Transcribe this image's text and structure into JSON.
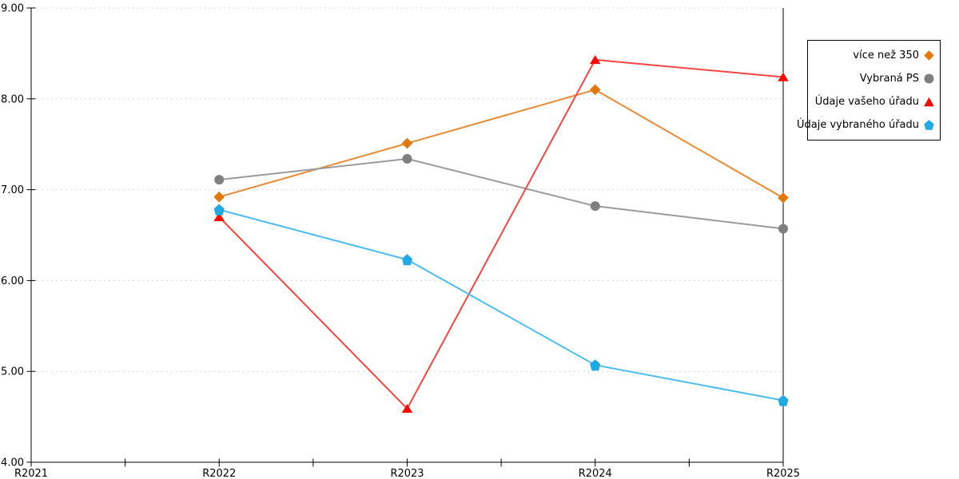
{
  "chart_data": {
    "type": "line",
    "title": "",
    "xlabel": "",
    "ylabel": "",
    "categories": [
      "R2021",
      "R2022",
      "R2023",
      "R2024",
      "R2025"
    ],
    "y_axis": {
      "min": 4,
      "max": 9,
      "tick_step": 1,
      "tick_labels": [
        "4.00",
        "5.00",
        "6.00",
        "7.00",
        "8.00",
        "9.00"
      ]
    },
    "grid": {
      "horizontal": "dotted",
      "color": "#c8c8c8"
    },
    "axis_color": "#000000",
    "legend_position": "right",
    "series": [
      {
        "name": "více než 350",
        "marker": "diamond",
        "color": "#e2790f",
        "line_color": "#e98a33",
        "values": [
          null,
          6.92,
          7.51,
          8.1,
          6.91
        ]
      },
      {
        "name": "Vybraná PS",
        "marker": "circle",
        "color": "#7f7f7f",
        "line_color": "#9b9b9b",
        "values": [
          null,
          7.11,
          7.34,
          6.82,
          6.57
        ]
      },
      {
        "name": "Údaje vašeho úřadu",
        "marker": "triangle-up",
        "color": "#f30d07",
        "line_color": "#f64540",
        "values": [
          null,
          6.7,
          4.59,
          8.43,
          8.24
        ]
      },
      {
        "name": "Údaje vybraného úřadu",
        "marker": "pentagon",
        "color": "#1faae4",
        "line_color": "#4cbdef",
        "values": [
          null,
          6.78,
          6.23,
          5.07,
          4.68
        ]
      }
    ]
  }
}
